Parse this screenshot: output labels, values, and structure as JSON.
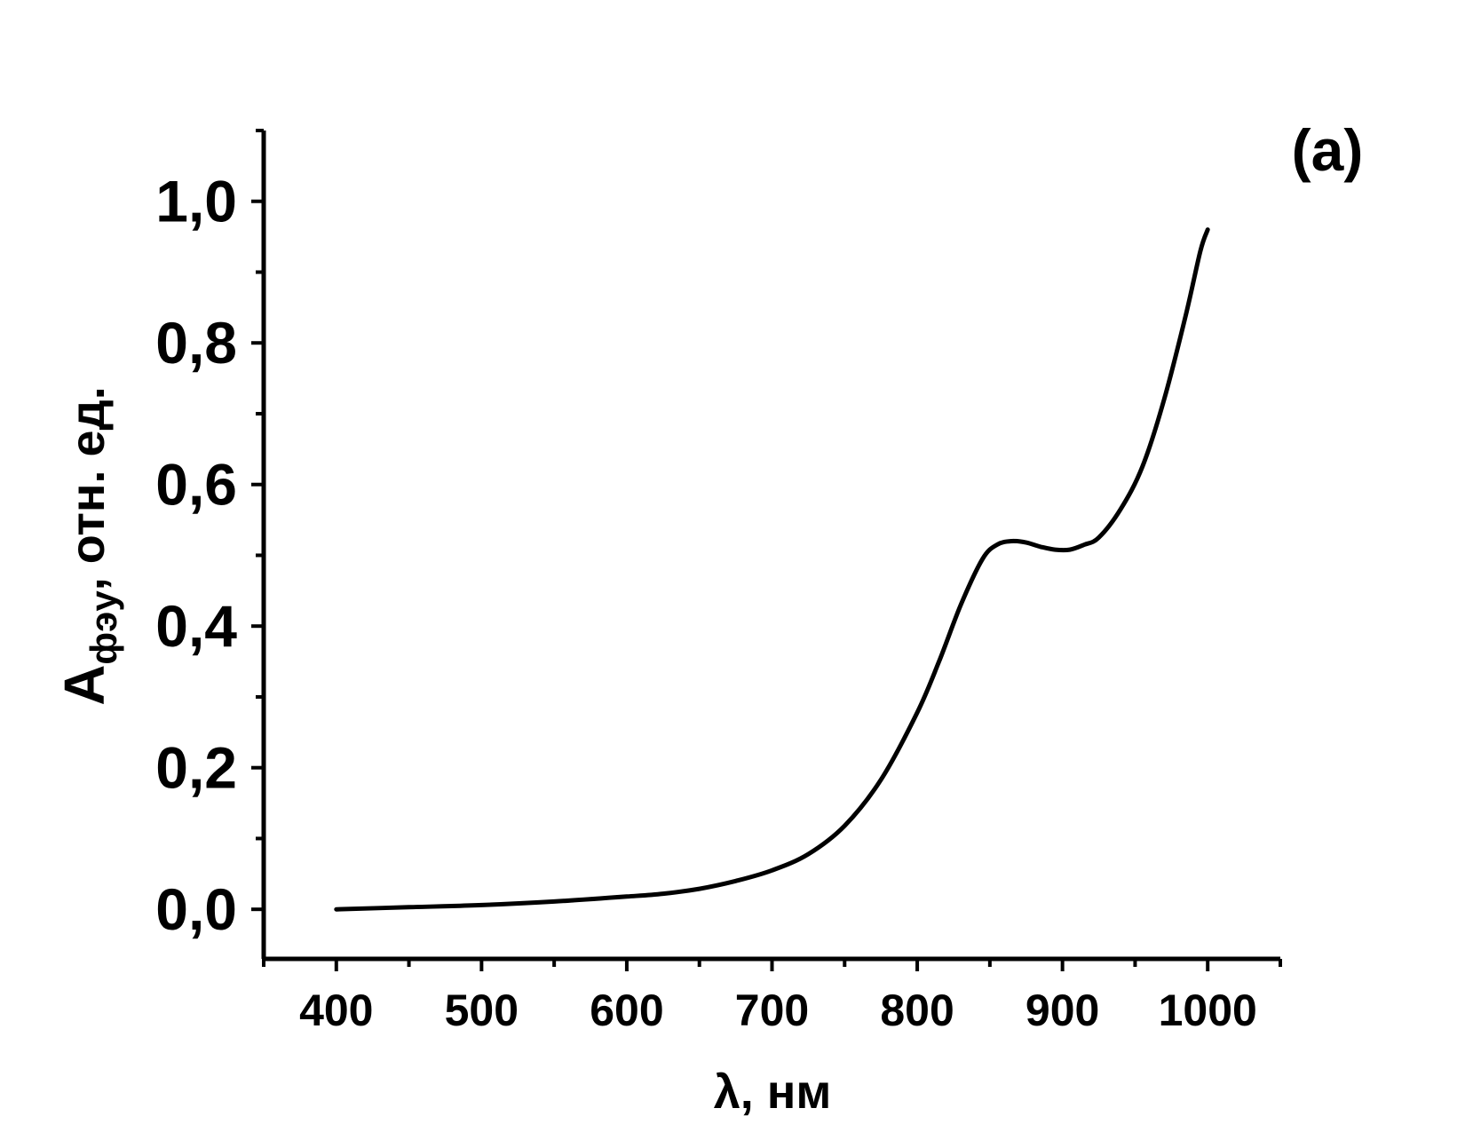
{
  "chart_data": {
    "type": "line",
    "panel_label": "(a)",
    "xlabel": "λ, нм",
    "ylabel": {
      "main": "A",
      "subscript": "фэу",
      "suffix": ", отн. ед."
    },
    "xlim": [
      350,
      1050
    ],
    "ylim": [
      -0.07,
      1.1
    ],
    "x_ticks": [
      400,
      500,
      600,
      700,
      800,
      900,
      1000
    ],
    "x_tick_labels": [
      "400",
      "500",
      "600",
      "700",
      "800",
      "900",
      "1000"
    ],
    "x_minor_ticks": [
      450,
      550,
      650,
      750,
      850,
      950,
      1050
    ],
    "y_ticks": [
      0.0,
      0.2,
      0.4,
      0.6,
      0.8,
      1.0
    ],
    "y_tick_labels": [
      "0,0",
      "0,2",
      "0,4",
      "0,6",
      "0,8",
      "1,0"
    ],
    "y_minor_ticks": [
      0.1,
      0.3,
      0.5,
      0.7,
      0.9,
      1.1
    ],
    "grid": false,
    "series": [
      {
        "color": "#000000",
        "x": [
          400,
          450,
          500,
          550,
          600,
          625,
          650,
          675,
          700,
          725,
          750,
          775,
          800,
          815,
          830,
          845,
          855,
          865,
          875,
          885,
          895,
          905,
          915,
          925,
          940,
          955,
          970,
          985,
          995,
          1000
        ],
        "y": [
          0.0,
          0.003,
          0.006,
          0.011,
          0.018,
          0.022,
          0.029,
          0.04,
          0.055,
          0.078,
          0.118,
          0.183,
          0.278,
          0.35,
          0.43,
          0.495,
          0.515,
          0.52,
          0.518,
          0.512,
          0.508,
          0.508,
          0.515,
          0.525,
          0.565,
          0.625,
          0.72,
          0.84,
          0.93,
          0.96
        ]
      }
    ]
  }
}
